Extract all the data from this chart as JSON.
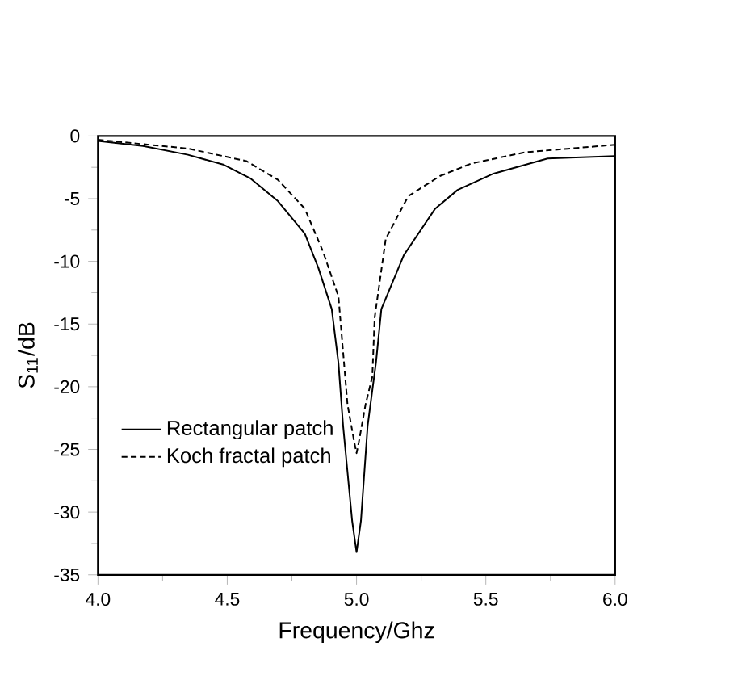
{
  "chart_data": {
    "type": "line",
    "xlabel": "Frequency/Ghz",
    "ylabel": "S$_{11}$/dB",
    "xlim": [
      4.0,
      6.0
    ],
    "ylim": [
      -35,
      0
    ],
    "xticks": [
      {
        "value": 4.0,
        "label": "4.0"
      },
      {
        "value": 4.5,
        "label": "4.5"
      },
      {
        "value": 5.0,
        "label": "5.0"
      },
      {
        "value": 5.5,
        "label": "5.5"
      },
      {
        "value": 6.0,
        "label": "6.0"
      }
    ],
    "yticks": [
      0,
      -5,
      -10,
      -15,
      -20,
      -25,
      -30,
      -35
    ],
    "legend": "left",
    "grid": false,
    "marker": "none",
    "series": [
      {
        "name": "Rectangular patch",
        "color": "#000000",
        "line_style": "solid",
        "x": [
          4.0,
          4.174,
          4.348,
          4.487,
          4.591,
          4.696,
          4.8,
          4.852,
          4.904,
          4.93,
          4.948,
          4.983,
          5.0,
          5.017,
          5.043,
          5.075,
          5.096,
          5.183,
          5.304,
          5.391,
          5.53,
          5.739,
          6.0
        ],
        "values": [
          -0.4,
          -0.8,
          -1.5,
          -2.3,
          -3.4,
          -5.2,
          -7.8,
          -10.5,
          -13.8,
          -18.1,
          -23.1,
          -30.7,
          -33.2,
          -30.7,
          -23.1,
          -18.1,
          -13.8,
          -9.5,
          -5.8,
          -4.3,
          -3.0,
          -1.8,
          -1.6
        ]
      },
      {
        "name": "Koch fractal patch",
        "color": "#000000",
        "line_style": "dashed",
        "x": [
          4.0,
          4.348,
          4.574,
          4.696,
          4.8,
          4.87,
          4.93,
          4.965,
          4.991,
          5.0,
          5.009,
          5.035,
          5.061,
          5.07,
          5.113,
          5.2,
          5.322,
          5.443,
          5.652,
          6.0
        ],
        "values": [
          -0.3,
          -1.0,
          -2.0,
          -3.5,
          -5.8,
          -9.2,
          -12.8,
          -21.4,
          -24.4,
          -25.3,
          -24.4,
          -21.4,
          -19.2,
          -14.5,
          -8.2,
          -4.8,
          -3.2,
          -2.2,
          -1.3,
          -0.7
        ]
      }
    ]
  }
}
